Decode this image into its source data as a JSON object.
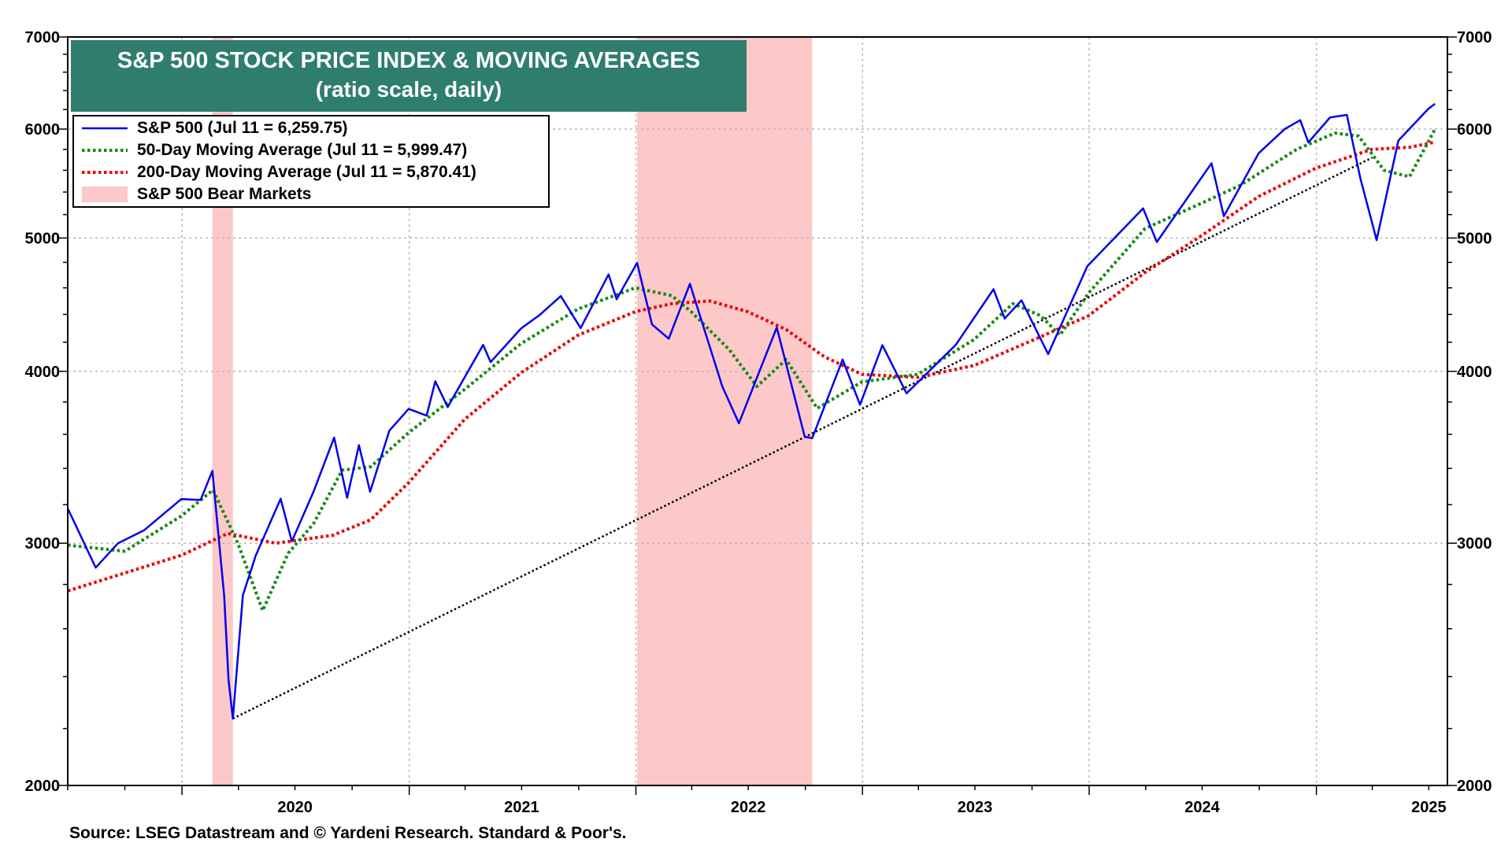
{
  "chart_data": {
    "type": "line",
    "title": "S&P 500 STOCK PRICE INDEX & MOVING AVERAGES",
    "subtitle": "(ratio scale, daily)",
    "y_scale": "log",
    "ylim": [
      2000,
      7000
    ],
    "y_ticks": [
      2000,
      3000,
      4000,
      5000,
      6000,
      7000
    ],
    "y_tick_labels": [
      "2000",
      "3000",
      "4000",
      "5000",
      "6000",
      "7000"
    ],
    "xlim": [
      "2019-07-01",
      "2025-07-31"
    ],
    "x_ticks": [
      "2020",
      "2021",
      "2022",
      "2023",
      "2024",
      "2025"
    ],
    "grid": true,
    "legend_position": "top-left",
    "series": [
      {
        "name": "S&P 500 (Jul 11 = 6,259.75)",
        "style": "solid",
        "color": "#0000ee",
        "points": [
          [
            "2019-07-01",
            3180
          ],
          [
            "2019-08-15",
            2880
          ],
          [
            "2019-09-20",
            3000
          ],
          [
            "2019-11-01",
            3066
          ],
          [
            "2019-12-31",
            3230
          ],
          [
            "2020-01-31",
            3225
          ],
          [
            "2020-02-19",
            3386
          ],
          [
            "2020-03-09",
            2746
          ],
          [
            "2020-03-16",
            2386
          ],
          [
            "2020-03-23",
            2237
          ],
          [
            "2020-04-08",
            2750
          ],
          [
            "2020-04-29",
            2940
          ],
          [
            "2020-06-08",
            3232
          ],
          [
            "2020-06-26",
            3009
          ],
          [
            "2020-07-31",
            3271
          ],
          [
            "2020-09-02",
            3580
          ],
          [
            "2020-09-23",
            3237
          ],
          [
            "2020-10-12",
            3535
          ],
          [
            "2020-10-30",
            3270
          ],
          [
            "2020-11-30",
            3622
          ],
          [
            "2020-12-31",
            3756
          ],
          [
            "2021-01-29",
            3714
          ],
          [
            "2021-02-12",
            3934
          ],
          [
            "2021-03-04",
            3768
          ],
          [
            "2021-04-30",
            4181
          ],
          [
            "2021-05-12",
            4063
          ],
          [
            "2021-06-30",
            4297
          ],
          [
            "2021-07-30",
            4395
          ],
          [
            "2021-09-02",
            4537
          ],
          [
            "2021-10-04",
            4300
          ],
          [
            "2021-11-18",
            4704
          ],
          [
            "2021-12-01",
            4513
          ],
          [
            "2022-01-03",
            4796
          ],
          [
            "2022-01-27",
            4326
          ],
          [
            "2022-02-23",
            4225
          ],
          [
            "2022-03-29",
            4631
          ],
          [
            "2022-05-20",
            3901
          ],
          [
            "2022-06-16",
            3667
          ],
          [
            "2022-08-16",
            4305
          ],
          [
            "2022-09-30",
            3585
          ],
          [
            "2022-10-12",
            3577
          ],
          [
            "2022-11-30",
            4080
          ],
          [
            "2022-12-28",
            3783
          ],
          [
            "2023-02-02",
            4179
          ],
          [
            "2023-03-13",
            3855
          ],
          [
            "2023-05-31",
            4180
          ],
          [
            "2023-07-31",
            4589
          ],
          [
            "2023-08-18",
            4370
          ],
          [
            "2023-09-14",
            4505
          ],
          [
            "2023-10-27",
            4117
          ],
          [
            "2023-12-29",
            4770
          ],
          [
            "2024-03-28",
            5254
          ],
          [
            "2024-04-19",
            4967
          ],
          [
            "2024-07-16",
            5667
          ],
          [
            "2024-08-05",
            5186
          ],
          [
            "2024-09-30",
            5762
          ],
          [
            "2024-11-11",
            6001
          ],
          [
            "2024-12-06",
            6090
          ],
          [
            "2024-12-19",
            5867
          ],
          [
            "2025-01-23",
            6118
          ],
          [
            "2025-02-19",
            6144
          ],
          [
            "2025-03-13",
            5521
          ],
          [
            "2025-04-08",
            4983
          ],
          [
            "2025-05-13",
            5886
          ],
          [
            "2025-06-30",
            6205
          ],
          [
            "2025-07-11",
            6259.75
          ]
        ]
      },
      {
        "name": "50-Day Moving Average (Jul 11 = 5,999.47)",
        "style": "dotted",
        "color": "#168a16",
        "points": [
          [
            "2019-07-01",
            2990
          ],
          [
            "2019-10-01",
            2960
          ],
          [
            "2019-12-31",
            3140
          ],
          [
            "2020-02-20",
            3280
          ],
          [
            "2020-03-31",
            3000
          ],
          [
            "2020-05-10",
            2680
          ],
          [
            "2020-06-20",
            2950
          ],
          [
            "2020-07-31",
            3100
          ],
          [
            "2020-09-15",
            3390
          ],
          [
            "2020-10-31",
            3410
          ],
          [
            "2020-12-31",
            3610
          ],
          [
            "2021-03-31",
            3880
          ],
          [
            "2021-06-30",
            4190
          ],
          [
            "2021-09-30",
            4440
          ],
          [
            "2021-12-31",
            4600
          ],
          [
            "2022-02-28",
            4540
          ],
          [
            "2022-03-31",
            4420
          ],
          [
            "2022-05-31",
            4150
          ],
          [
            "2022-07-15",
            3900
          ],
          [
            "2022-08-31",
            4080
          ],
          [
            "2022-10-20",
            3760
          ],
          [
            "2022-12-31",
            3930
          ],
          [
            "2023-03-31",
            3980
          ],
          [
            "2023-06-30",
            4220
          ],
          [
            "2023-08-31",
            4480
          ],
          [
            "2023-10-15",
            4390
          ],
          [
            "2023-11-15",
            4250
          ],
          [
            "2023-12-31",
            4560
          ],
          [
            "2024-03-31",
            5080
          ],
          [
            "2024-06-30",
            5300
          ],
          [
            "2024-08-31",
            5460
          ],
          [
            "2024-11-30",
            5800
          ],
          [
            "2025-01-31",
            5960
          ],
          [
            "2025-03-10",
            5930
          ],
          [
            "2025-04-20",
            5600
          ],
          [
            "2025-05-31",
            5540
          ],
          [
            "2025-07-11",
            5999.47
          ]
        ]
      },
      {
        "name": "200-Day Moving Average (Jul 11 = 5,870.41)",
        "style": "dotted",
        "color": "#ee0000",
        "points": [
          [
            "2019-07-01",
            2770
          ],
          [
            "2019-12-31",
            2940
          ],
          [
            "2020-03-15",
            3050
          ],
          [
            "2020-05-31",
            3000
          ],
          [
            "2020-08-31",
            3040
          ],
          [
            "2020-10-31",
            3120
          ],
          [
            "2020-12-31",
            3320
          ],
          [
            "2021-03-31",
            3690
          ],
          [
            "2021-06-30",
            3990
          ],
          [
            "2021-09-30",
            4250
          ],
          [
            "2021-12-31",
            4420
          ],
          [
            "2022-02-28",
            4480
          ],
          [
            "2022-04-30",
            4500
          ],
          [
            "2022-06-30",
            4420
          ],
          [
            "2022-08-31",
            4290
          ],
          [
            "2022-10-31",
            4100
          ],
          [
            "2022-12-31",
            3980
          ],
          [
            "2023-03-31",
            3960
          ],
          [
            "2023-06-30",
            4040
          ],
          [
            "2023-09-30",
            4210
          ],
          [
            "2023-12-31",
            4390
          ],
          [
            "2024-03-31",
            4720
          ],
          [
            "2024-06-30",
            5020
          ],
          [
            "2024-09-30",
            5360
          ],
          [
            "2024-12-31",
            5620
          ],
          [
            "2025-03-31",
            5800
          ],
          [
            "2025-05-31",
            5820
          ],
          [
            "2025-07-11",
            5870.41
          ]
        ]
      },
      {
        "name": "trend",
        "style": "dotted",
        "color": "#000000",
        "points": [
          [
            "2020-03-23",
            2237
          ],
          [
            "2025-04-01",
            5720
          ]
        ]
      }
    ],
    "shaded_regions": {
      "name": "S&P 500 Bear Markets",
      "color": "#fcc8c8",
      "ranges": [
        [
          "2020-02-19",
          "2020-03-23"
        ],
        [
          "2022-01-03",
          "2022-10-12"
        ]
      ]
    }
  },
  "title_box": {
    "title": "S&P 500 STOCK PRICE INDEX & MOVING AVERAGES",
    "subtitle": "(ratio scale, daily)",
    "color": "#2e7d6e"
  },
  "legend": [
    {
      "label": "S&P 500 (Jul 11 = 6,259.75)"
    },
    {
      "label": "50-Day Moving Average (Jul 11 = 5,999.47)"
    },
    {
      "label": "200-Day Moving Average (Jul 11 = 5,870.41)"
    },
    {
      "label": "S&P 500 Bear Markets"
    }
  ],
  "source": "Source: LSEG Datastream and © Yardeni Research. Standard & Poor's."
}
